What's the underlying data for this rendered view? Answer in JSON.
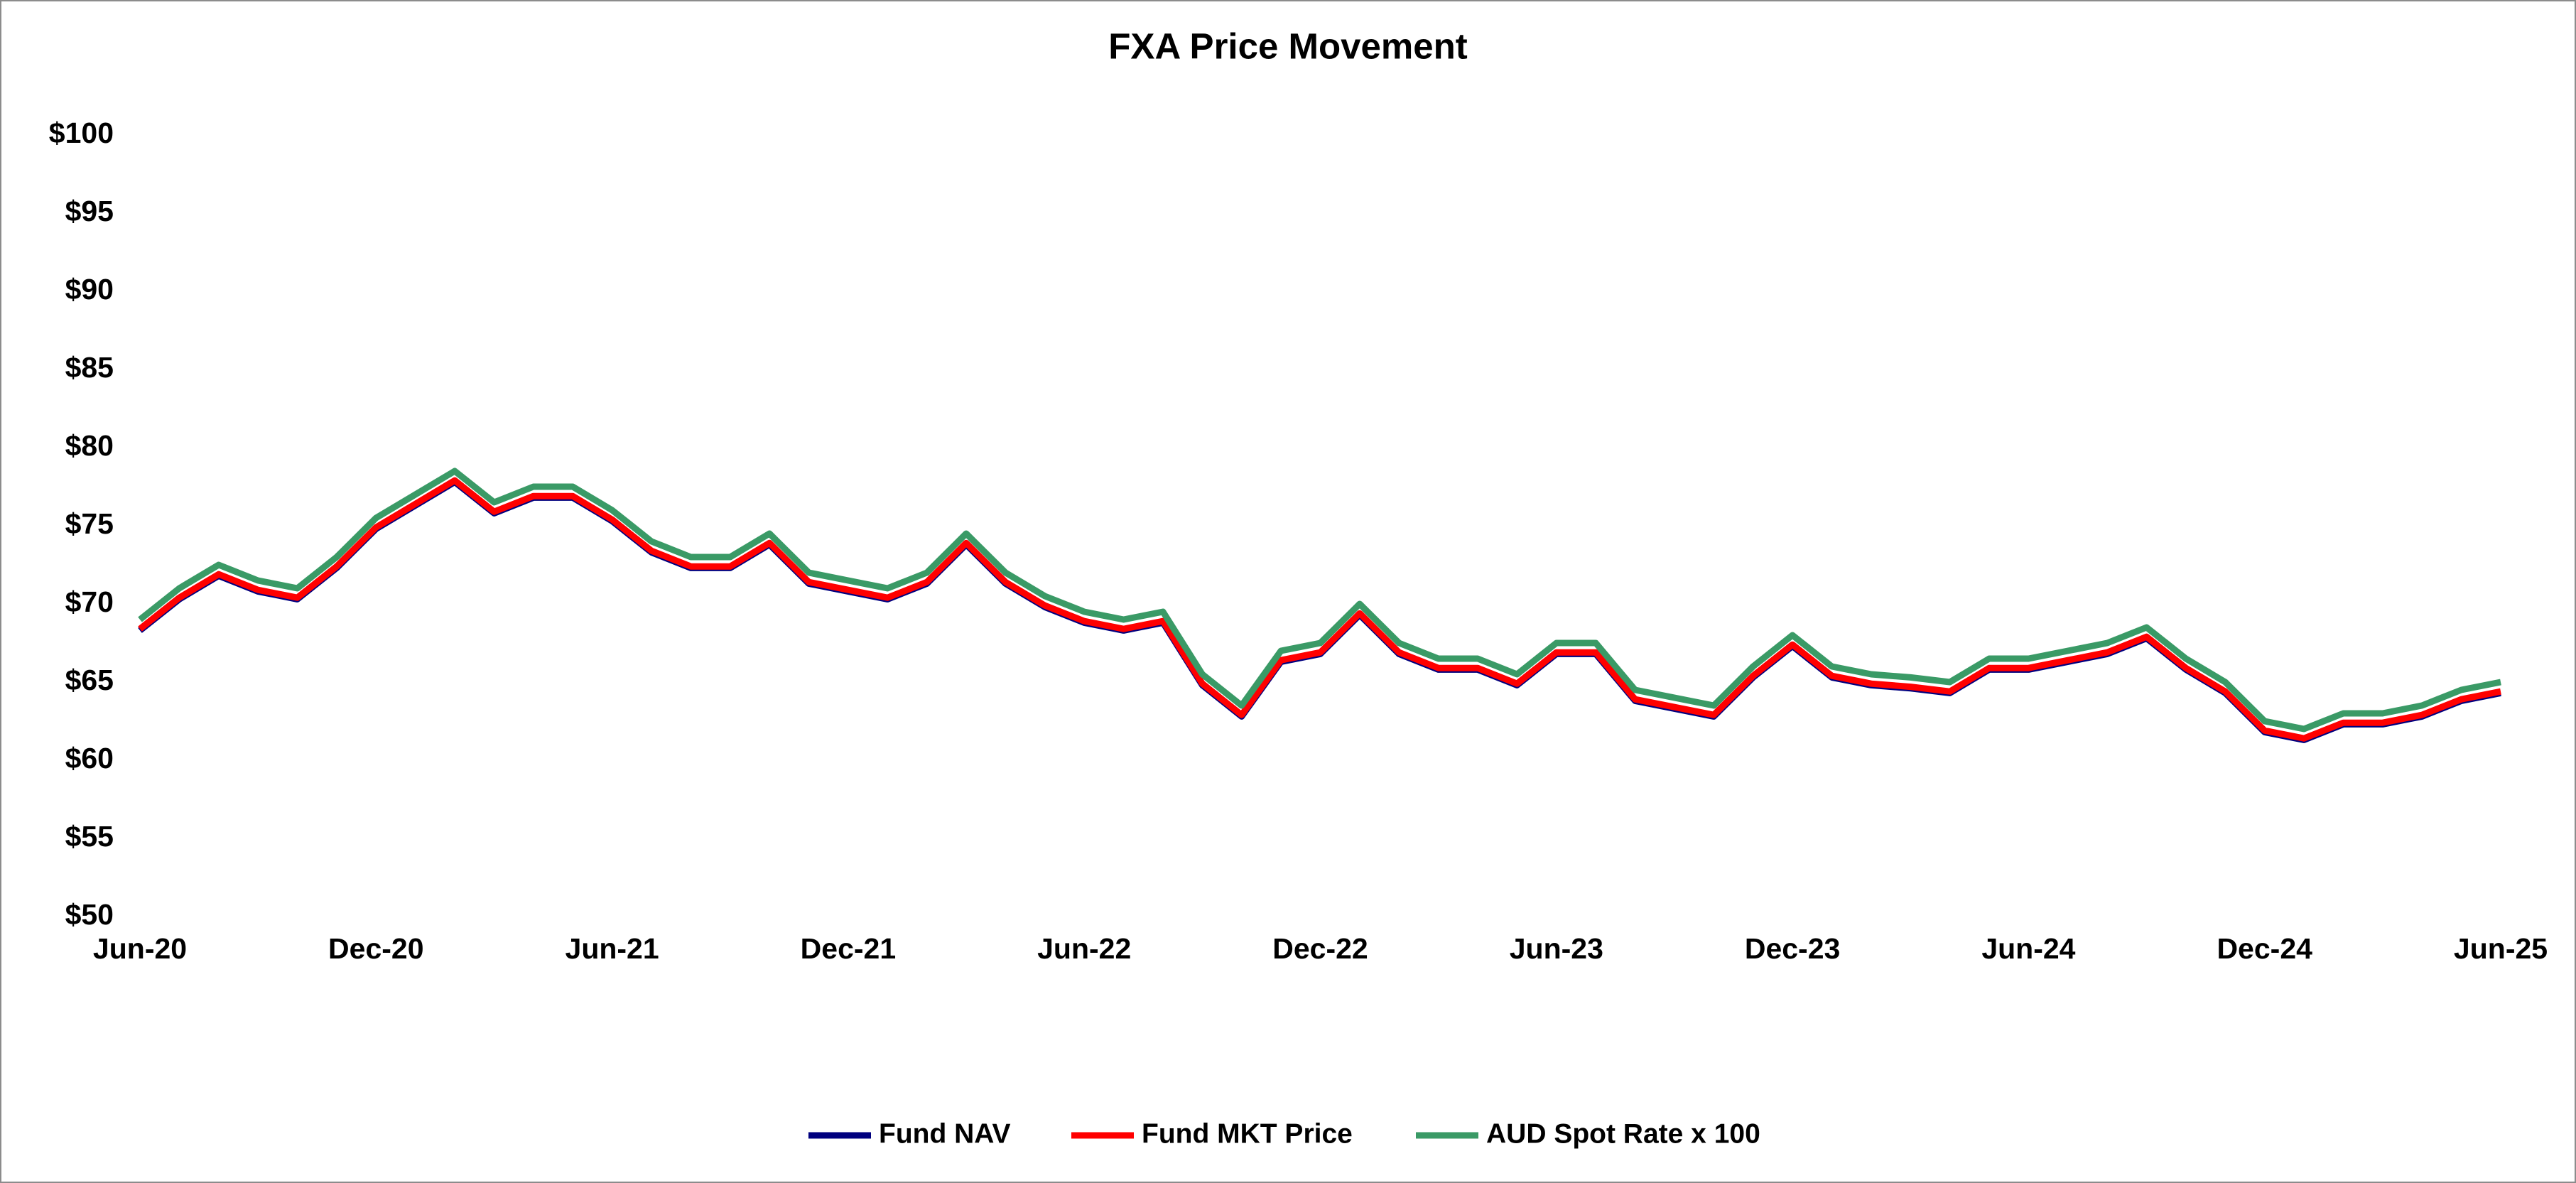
{
  "chart_data": {
    "type": "line",
    "title": "FXA Price Movement",
    "x": [
      "2020-06",
      "2020-07",
      "2020-08",
      "2020-09",
      "2020-10",
      "2020-11",
      "2020-12",
      "2021-01",
      "2021-02",
      "2021-03",
      "2021-04",
      "2021-05",
      "2021-06",
      "2021-07",
      "2021-08",
      "2021-09",
      "2021-10",
      "2021-11",
      "2021-12",
      "2022-01",
      "2022-02",
      "2022-03",
      "2022-04",
      "2022-05",
      "2022-06",
      "2022-07",
      "2022-08",
      "2022-09",
      "2022-10",
      "2022-11",
      "2022-12",
      "2023-01",
      "2023-02",
      "2023-03",
      "2023-04",
      "2023-05",
      "2023-06",
      "2023-07",
      "2023-08",
      "2023-09",
      "2023-10",
      "2023-11",
      "2023-12",
      "2024-01",
      "2024-02",
      "2024-03",
      "2024-04",
      "2024-05",
      "2024-06",
      "2024-07",
      "2024-08",
      "2024-09",
      "2024-10",
      "2024-11",
      "2024-12",
      "2025-01",
      "2025-02",
      "2025-03",
      "2025-04",
      "2025-05",
      "2025-06"
    ],
    "series": [
      {
        "name": "Fund NAV",
        "color": "#00007f",
        "values": [
          68.3,
          70.3,
          71.8,
          70.8,
          70.3,
          72.3,
          74.8,
          76.3,
          77.8,
          75.8,
          76.8,
          76.8,
          75.3,
          73.3,
          72.3,
          72.3,
          73.8,
          71.3,
          70.8,
          70.3,
          71.3,
          73.8,
          71.3,
          69.8,
          68.8,
          68.3,
          68.8,
          64.8,
          62.8,
          66.3,
          66.8,
          69.3,
          66.8,
          65.8,
          65.8,
          64.8,
          66.8,
          66.8,
          63.8,
          63.3,
          62.8,
          65.3,
          67.3,
          65.3,
          64.8,
          64.6,
          64.3,
          65.8,
          65.8,
          66.3,
          66.8,
          67.8,
          65.8,
          64.3,
          61.8,
          61.3,
          62.3,
          62.3,
          62.8,
          63.8,
          64.3
        ]
      },
      {
        "name": "Fund MKT Price",
        "color": "#ff0000",
        "values": [
          68.4,
          70.4,
          71.9,
          70.9,
          70.4,
          72.4,
          74.9,
          76.4,
          77.9,
          75.9,
          76.9,
          76.9,
          75.4,
          73.4,
          72.4,
          72.4,
          73.9,
          71.4,
          70.9,
          70.4,
          71.4,
          73.9,
          71.4,
          69.9,
          68.9,
          68.4,
          68.9,
          64.9,
          62.9,
          66.4,
          66.9,
          69.4,
          66.9,
          65.9,
          65.9,
          64.9,
          66.9,
          66.9,
          63.9,
          63.4,
          62.9,
          65.4,
          67.4,
          65.4,
          64.9,
          64.7,
          64.4,
          65.9,
          65.9,
          66.4,
          66.9,
          67.9,
          65.9,
          64.4,
          61.9,
          61.4,
          62.4,
          62.4,
          62.9,
          63.9,
          64.4
        ]
      },
      {
        "name": "AUD Spot Rate x 100",
        "color": "#3a9a66",
        "values": [
          69.0,
          71.0,
          72.5,
          71.5,
          71.0,
          73.0,
          75.5,
          77.0,
          78.5,
          76.5,
          77.5,
          77.5,
          76.0,
          74.0,
          73.0,
          73.0,
          74.5,
          72.0,
          71.5,
          71.0,
          72.0,
          74.5,
          72.0,
          70.5,
          69.5,
          69.0,
          69.5,
          65.5,
          63.5,
          67.0,
          67.5,
          70.0,
          67.5,
          66.5,
          66.5,
          65.5,
          67.5,
          67.5,
          64.5,
          64.0,
          63.5,
          66.0,
          68.0,
          66.0,
          65.5,
          65.3,
          65.0,
          66.5,
          66.5,
          67.0,
          67.5,
          68.5,
          66.5,
          65.0,
          62.5,
          62.0,
          63.0,
          63.0,
          63.5,
          64.5,
          65.0
        ]
      }
    ],
    "xticks": [
      {
        "value": "2020-06",
        "label": "Jun-20"
      },
      {
        "value": "2020-12",
        "label": "Dec-20"
      },
      {
        "value": "2021-06",
        "label": "Jun-21"
      },
      {
        "value": "2021-12",
        "label": "Dec-21"
      },
      {
        "value": "2022-06",
        "label": "Jun-22"
      },
      {
        "value": "2022-12",
        "label": "Dec-22"
      },
      {
        "value": "2023-06",
        "label": "Jun-23"
      },
      {
        "value": "2023-12",
        "label": "Dec-23"
      },
      {
        "value": "2024-06",
        "label": "Jun-24"
      },
      {
        "value": "2024-12",
        "label": "Dec-24"
      },
      {
        "value": "2025-06",
        "label": "Jun-25"
      }
    ],
    "xlim": [
      "2020-06",
      "2025-06"
    ],
    "ylim": [
      50,
      100
    ],
    "yticks": [
      {
        "value": 50,
        "label": "$50"
      },
      {
        "value": 55,
        "label": "$55"
      },
      {
        "value": 60,
        "label": "$60"
      },
      {
        "value": 65,
        "label": "$65"
      },
      {
        "value": 70,
        "label": "$70"
      },
      {
        "value": 75,
        "label": "$75"
      },
      {
        "value": 80,
        "label": "$80"
      },
      {
        "value": 85,
        "label": "$85"
      },
      {
        "value": 90,
        "label": "$90"
      },
      {
        "value": 95,
        "label": "$95"
      },
      {
        "value": 100,
        "label": "$100"
      }
    ],
    "grid": false,
    "legend": "bottom"
  }
}
